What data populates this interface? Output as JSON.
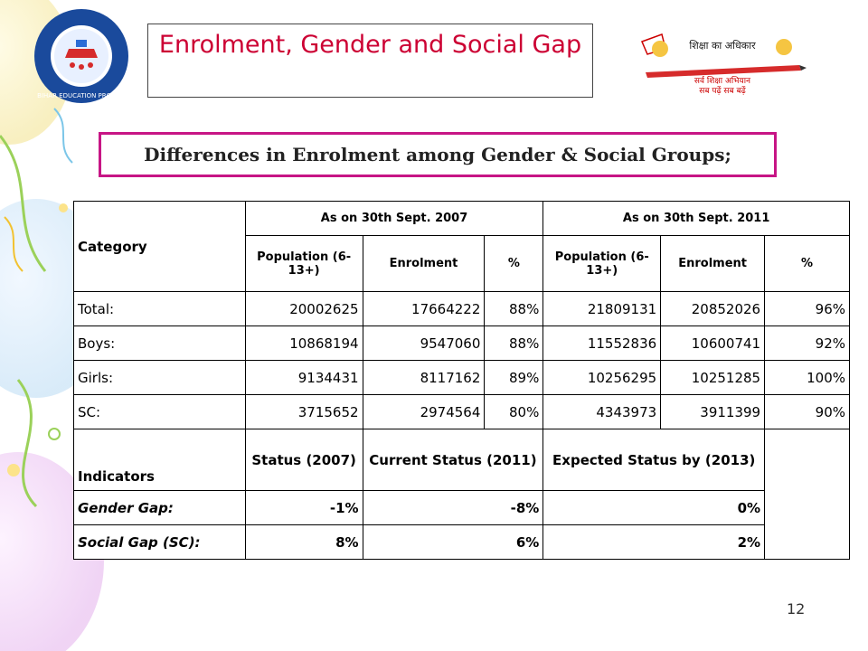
{
  "title": "Enrolment, Gender and Social Gap",
  "subtitle": "Differences in Enrolment among Gender & Social Groups;",
  "logo_left_text": "BIHAR EDUCATION PROJECT",
  "logo_right_text": "शिक्षा का अधिकार",
  "logo_right_tagline1": "सर्व शिक्षा अभियान",
  "logo_right_tagline2": "सब पढ़ें सब बढ़ें",
  "table": {
    "category_header": "Category",
    "period1": "As on 30th Sept. 2007",
    "period2": "As on 30th Sept. 2011",
    "sub_population": "Population (6-13+)",
    "sub_enrolment": "Enrolment",
    "sub_percent": "%",
    "rows": [
      {
        "label": "Total:",
        "p1": "20002625",
        "e1": "17664222",
        "pc1": "88%",
        "p2": "21809131",
        "e2": "20852026",
        "pc2": "96%"
      },
      {
        "label": "Boys:",
        "p1": "10868194",
        "e1": "9547060",
        "pc1": "88%",
        "p2": "11552836",
        "e2": "10600741",
        "pc2": "92%"
      },
      {
        "label": "Girls:",
        "p1": "9134431",
        "e1": "8117162",
        "pc1": "89%",
        "p2": "10256295",
        "e2": "10251285",
        "pc2": "100%"
      },
      {
        "label": "SC:",
        "p1": "3715652",
        "e1": "2974564",
        "pc1": "80%",
        "p2": "4343973",
        "e2": "3911399",
        "pc2": "90%"
      }
    ],
    "indicators_header": "Indicators",
    "status_header": "Status (2007)",
    "current_header": "Current Status (2011)",
    "expected_header": "Expected Status by (2013)",
    "indicator_rows": [
      {
        "label": "Gender Gap:",
        "status": "-1%",
        "current": "-8%",
        "expected": "0%"
      },
      {
        "label": "Social Gap (SC):",
        "status": "8%",
        "current": "6%",
        "expected": "2%"
      }
    ]
  },
  "page_number": "12",
  "colors": {
    "title": "#cc0033",
    "subtitle_border": "#c71585",
    "indicator_text": "#000080"
  }
}
